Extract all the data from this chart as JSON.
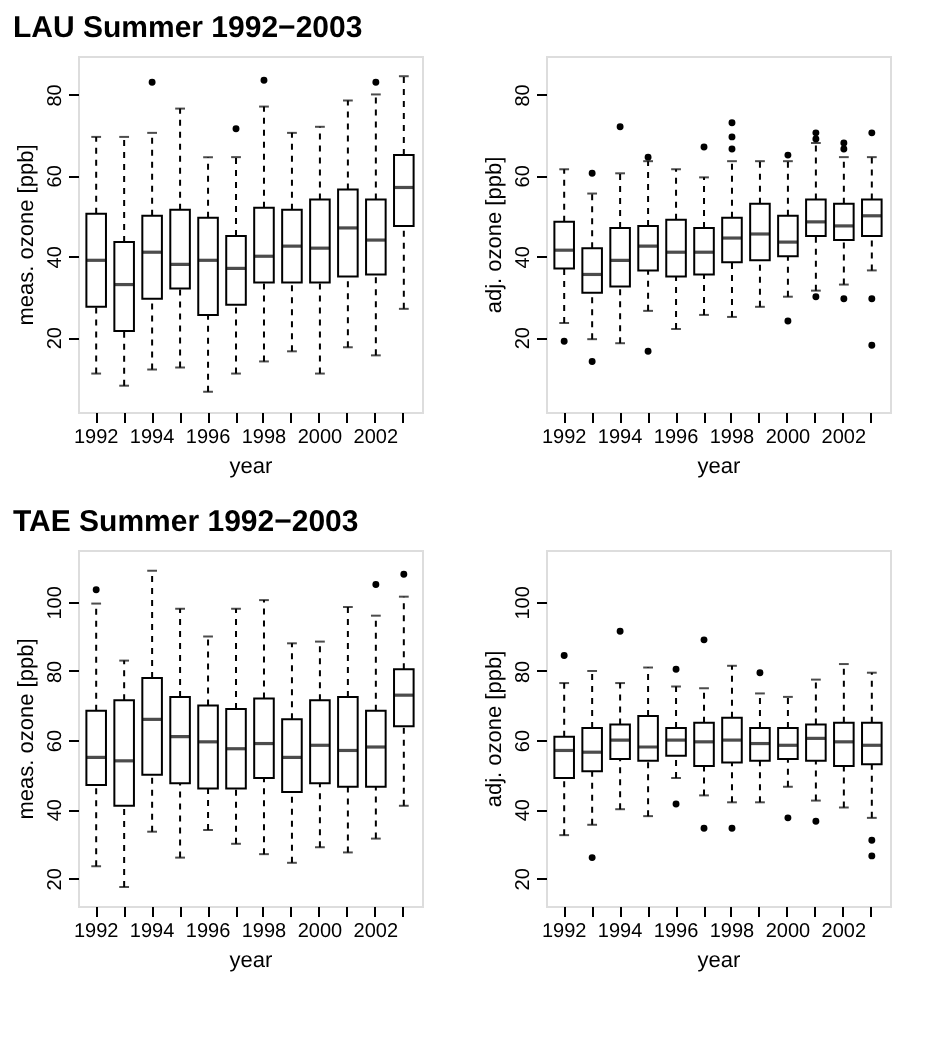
{
  "chart_data": [
    {
      "type": "box",
      "title": "LAU    Summer 1992−2003",
      "xlabel": "year",
      "ylabel": "meas. ozone [ppb]",
      "categories": [
        "1992",
        null,
        "1994",
        null,
        "1996",
        null,
        "1998",
        null,
        "2000",
        null,
        "2002",
        null
      ],
      "ylim": [
        1.5,
        89.5
      ],
      "yticks": [
        20,
        40,
        60,
        80
      ],
      "boxes": [
        {
          "low": 11,
          "q1": 27.5,
          "median": 39,
          "q3": 50.5,
          "high": 69.5
        },
        {
          "low": 8,
          "q1": 21.5,
          "median": 33,
          "q3": 43.5,
          "high": 69.5
        },
        {
          "low": 12,
          "q1": 29.5,
          "median": 41,
          "q3": 50,
          "high": 70.5,
          "outliers": [
            83
          ]
        },
        {
          "low": 12.5,
          "q1": 32,
          "median": 38,
          "q3": 51.5,
          "high": 76.5
        },
        {
          "low": 6.5,
          "q1": 25.5,
          "median": 39,
          "q3": 49.5,
          "high": 64.5
        },
        {
          "low": 11,
          "q1": 28,
          "median": 37,
          "q3": 45,
          "high": 64.5,
          "outliers": [
            71.5
          ]
        },
        {
          "low": 14,
          "q1": 33.5,
          "median": 40,
          "q3": 52,
          "high": 77,
          "outliers": [
            83.5
          ]
        },
        {
          "low": 16.5,
          "q1": 33.5,
          "median": 42.5,
          "q3": 51.5,
          "high": 70.5
        },
        {
          "low": 11,
          "q1": 33.5,
          "median": 42,
          "q3": 54,
          "high": 72
        },
        {
          "low": 17.5,
          "q1": 35,
          "median": 47,
          "q3": 56.5,
          "high": 78.5
        },
        {
          "low": 15.5,
          "q1": 35.5,
          "median": 44,
          "q3": 54,
          "high": 80,
          "outliers": [
            83
          ]
        },
        {
          "low": 27,
          "q1": 47.5,
          "median": 57,
          "q3": 65,
          "high": 84.5
        }
      ]
    },
    {
      "type": "box",
      "xlabel": "year",
      "ylabel": "adj. ozone [ppb]",
      "categories": [
        "1992",
        null,
        "1994",
        null,
        "1996",
        null,
        "1998",
        null,
        "2000",
        null,
        "2002",
        null
      ],
      "ylim": [
        1.5,
        89.5
      ],
      "yticks": [
        20,
        40,
        60,
        80
      ],
      "boxes": [
        {
          "low": 23.5,
          "q1": 37,
          "median": 41.5,
          "q3": 48.5,
          "high": 61.5,
          "outliers": [
            19
          ]
        },
        {
          "low": 19.5,
          "q1": 31,
          "median": 35.5,
          "q3": 42,
          "high": 55.5,
          "outliers": [
            60.5,
            14
          ]
        },
        {
          "low": 18.5,
          "q1": 32.5,
          "median": 39,
          "q3": 47,
          "high": 60.5,
          "outliers": [
            72
          ]
        },
        {
          "low": 26.5,
          "q1": 36.5,
          "median": 42.5,
          "q3": 47.5,
          "high": 63.5,
          "outliers": [
            64.5,
            16.5
          ]
        },
        {
          "low": 22,
          "q1": 35,
          "median": 41,
          "q3": 49,
          "high": 61.5
        },
        {
          "low": 25.5,
          "q1": 35.5,
          "median": 41,
          "q3": 47,
          "high": 59.5,
          "outliers": [
            67
          ]
        },
        {
          "low": 25,
          "q1": 38.5,
          "median": 44.5,
          "q3": 49.5,
          "high": 63.5,
          "outliers": [
            73,
            69.5,
            66.5
          ]
        },
        {
          "low": 27.5,
          "q1": 39,
          "median": 45.5,
          "q3": 53,
          "high": 63.5
        },
        {
          "low": 30,
          "q1": 40,
          "median": 43.5,
          "q3": 50,
          "high": 63.5,
          "outliers": [
            65,
            24
          ]
        },
        {
          "low": 31.5,
          "q1": 45,
          "median": 48.5,
          "q3": 54,
          "high": 68,
          "outliers": [
            70.5,
            69,
            30
          ]
        },
        {
          "low": 33,
          "q1": 44,
          "median": 47.5,
          "q3": 53,
          "high": 64.5,
          "outliers": [
            68,
            66.5,
            29.5
          ]
        },
        {
          "low": 36.5,
          "q1": 45,
          "median": 50,
          "q3": 54,
          "high": 64.5,
          "outliers": [
            70.5,
            29.5,
            18
          ]
        }
      ]
    },
    {
      "type": "box",
      "title": "TAE    Summer 1992−2003",
      "xlabel": "year",
      "ylabel": "meas. ozone [ppb]",
      "categories": [
        "1992",
        null,
        "1994",
        null,
        "1996",
        null,
        "1998",
        null,
        "2000",
        null,
        "2002",
        null
      ],
      "ylim": [
        12,
        115
      ],
      "yticks": [
        20,
        40,
        60,
        80,
        100
      ],
      "boxes": [
        {
          "low": 23.5,
          "q1": 47,
          "median": 55,
          "q3": 68.5,
          "high": 99.5,
          "outliers": [
            103.5
          ]
        },
        {
          "low": 17.5,
          "q1": 41,
          "median": 54,
          "q3": 71.5,
          "high": 83
        },
        {
          "low": 33.5,
          "q1": 50,
          "median": 66,
          "q3": 78,
          "high": 109
        },
        {
          "low": 26,
          "q1": 47.5,
          "median": 61,
          "q3": 72.5,
          "high": 98
        },
        {
          "low": 34,
          "q1": 46,
          "median": 59.5,
          "q3": 70,
          "high": 90
        },
        {
          "low": 30,
          "q1": 46,
          "median": 57.5,
          "q3": 69,
          "high": 98
        },
        {
          "low": 27,
          "q1": 49,
          "median": 59,
          "q3": 72,
          "high": 100.5
        },
        {
          "low": 24.5,
          "q1": 45,
          "median": 55,
          "q3": 66,
          "high": 88
        },
        {
          "low": 29,
          "q1": 47.5,
          "median": 58.5,
          "q3": 71.5,
          "high": 88.5
        },
        {
          "low": 27.5,
          "q1": 46.5,
          "median": 57,
          "q3": 72.5,
          "high": 98.5
        },
        {
          "low": 31.5,
          "q1": 46.5,
          "median": 58,
          "q3": 68.5,
          "high": 96,
          "outliers": [
            105
          ]
        },
        {
          "low": 41,
          "q1": 64,
          "median": 73,
          "q3": 80.5,
          "high": 101.5,
          "outliers": [
            108
          ]
        }
      ]
    },
    {
      "type": "box",
      "xlabel": "year",
      "ylabel": "adj. ozone [ppb]",
      "categories": [
        "1992",
        null,
        "1994",
        null,
        "1996",
        null,
        "1998",
        null,
        "2000",
        null,
        "2002",
        null
      ],
      "ylim": [
        12,
        115
      ],
      "yticks": [
        20,
        40,
        60,
        80,
        100
      ],
      "boxes": [
        {
          "low": 32.5,
          "q1": 49,
          "median": 57,
          "q3": 61,
          "high": 76.5,
          "outliers": [
            84.5
          ]
        },
        {
          "low": 35.5,
          "q1": 51,
          "median": 56.5,
          "q3": 63.5,
          "high": 80,
          "outliers": [
            26
          ]
        },
        {
          "low": 40,
          "q1": 54.5,
          "median": 60,
          "q3": 64.5,
          "high": 76.5,
          "outliers": [
            91.5
          ]
        },
        {
          "low": 38,
          "q1": 54,
          "median": 58,
          "q3": 67,
          "high": 81
        },
        {
          "low": 49,
          "q1": 55.5,
          "median": 60,
          "q3": 63.5,
          "high": 75.5,
          "outliers": [
            80.5,
            41.5
          ]
        },
        {
          "low": 44,
          "q1": 52.5,
          "median": 59.5,
          "q3": 65,
          "high": 75,
          "outliers": [
            89,
            34.5
          ]
        },
        {
          "low": 42,
          "q1": 53.5,
          "median": 60,
          "q3": 66.5,
          "high": 81.5,
          "outliers": [
            34.5
          ]
        },
        {
          "low": 42,
          "q1": 54,
          "median": 59,
          "q3": 63.5,
          "high": 73.5,
          "outliers": [
            79.5
          ]
        },
        {
          "low": 46.5,
          "q1": 54.5,
          "median": 58.5,
          "q3": 63.5,
          "high": 72.5,
          "outliers": [
            37.5
          ]
        },
        {
          "low": 42.5,
          "q1": 54,
          "median": 60.5,
          "q3": 64.5,
          "high": 77.5,
          "outliers": [
            36.5
          ]
        },
        {
          "low": 40.5,
          "q1": 52.5,
          "median": 59.5,
          "q3": 65,
          "high": 82
        },
        {
          "low": 37.5,
          "q1": 53,
          "median": 58.5,
          "q3": 65,
          "high": 79.5,
          "outliers": [
            31,
            26.5
          ]
        }
      ]
    }
  ]
}
